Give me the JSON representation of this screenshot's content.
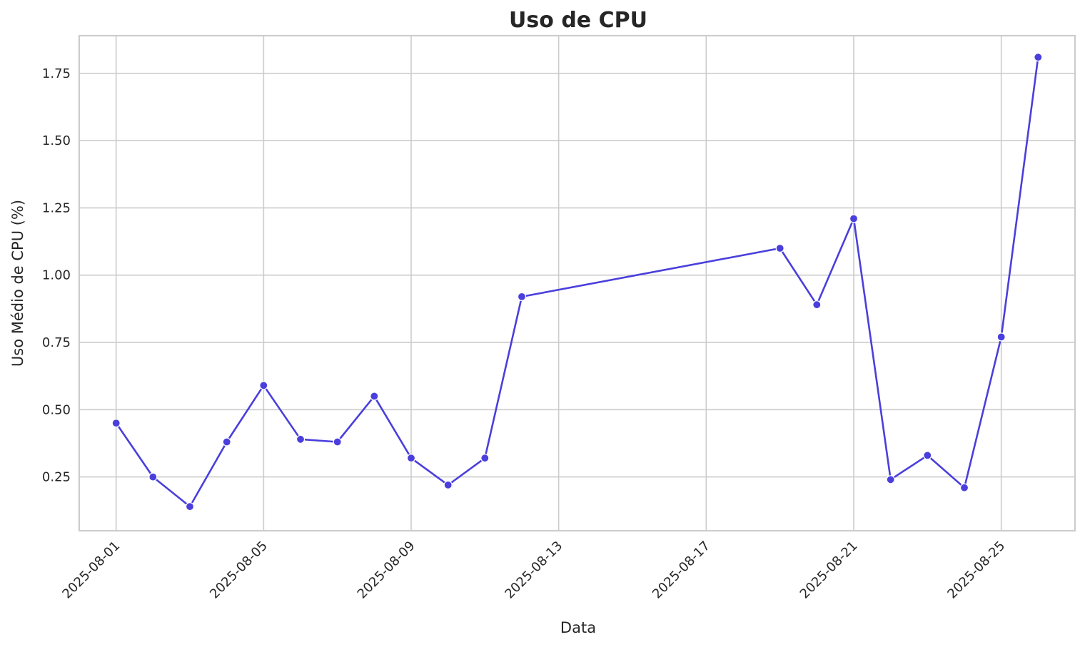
{
  "chart_data": {
    "type": "line",
    "title": "Uso de CPU",
    "xlabel": "Data",
    "ylabel": "Uso Médio de CPU (%)",
    "x_type": "date",
    "xlim": [
      "2025-07-31",
      "2025-08-27"
    ],
    "ylim": [
      0.05,
      1.89
    ],
    "x_ticks": [
      "2025-08-01",
      "2025-08-05",
      "2025-08-09",
      "2025-08-13",
      "2025-08-17",
      "2025-08-21",
      "2025-08-25"
    ],
    "y_ticks": [
      "0.25",
      "0.50",
      "0.75",
      "1.00",
      "1.25",
      "1.50",
      "1.75"
    ],
    "grid": true,
    "series": [
      {
        "color": "#4a3fdc",
        "marker": "circle",
        "points": [
          {
            "x": "2025-08-01",
            "y": 0.45
          },
          {
            "x": "2025-08-02",
            "y": 0.25
          },
          {
            "x": "2025-08-03",
            "y": 0.14
          },
          {
            "x": "2025-08-04",
            "y": 0.38
          },
          {
            "x": "2025-08-05",
            "y": 0.59
          },
          {
            "x": "2025-08-06",
            "y": 0.39
          },
          {
            "x": "2025-08-07",
            "y": 0.38
          },
          {
            "x": "2025-08-08",
            "y": 0.55
          },
          {
            "x": "2025-08-09",
            "y": 0.32
          },
          {
            "x": "2025-08-10",
            "y": 0.22
          },
          {
            "x": "2025-08-11",
            "y": 0.32
          },
          {
            "x": "2025-08-12",
            "y": 0.92
          },
          {
            "x": "2025-08-19",
            "y": 1.1
          },
          {
            "x": "2025-08-20",
            "y": 0.89
          },
          {
            "x": "2025-08-21",
            "y": 1.21
          },
          {
            "x": "2025-08-22",
            "y": 0.24
          },
          {
            "x": "2025-08-23",
            "y": 0.33
          },
          {
            "x": "2025-08-24",
            "y": 0.21
          },
          {
            "x": "2025-08-25",
            "y": 0.77
          },
          {
            "x": "2025-08-26",
            "y": 1.81
          }
        ]
      }
    ]
  }
}
